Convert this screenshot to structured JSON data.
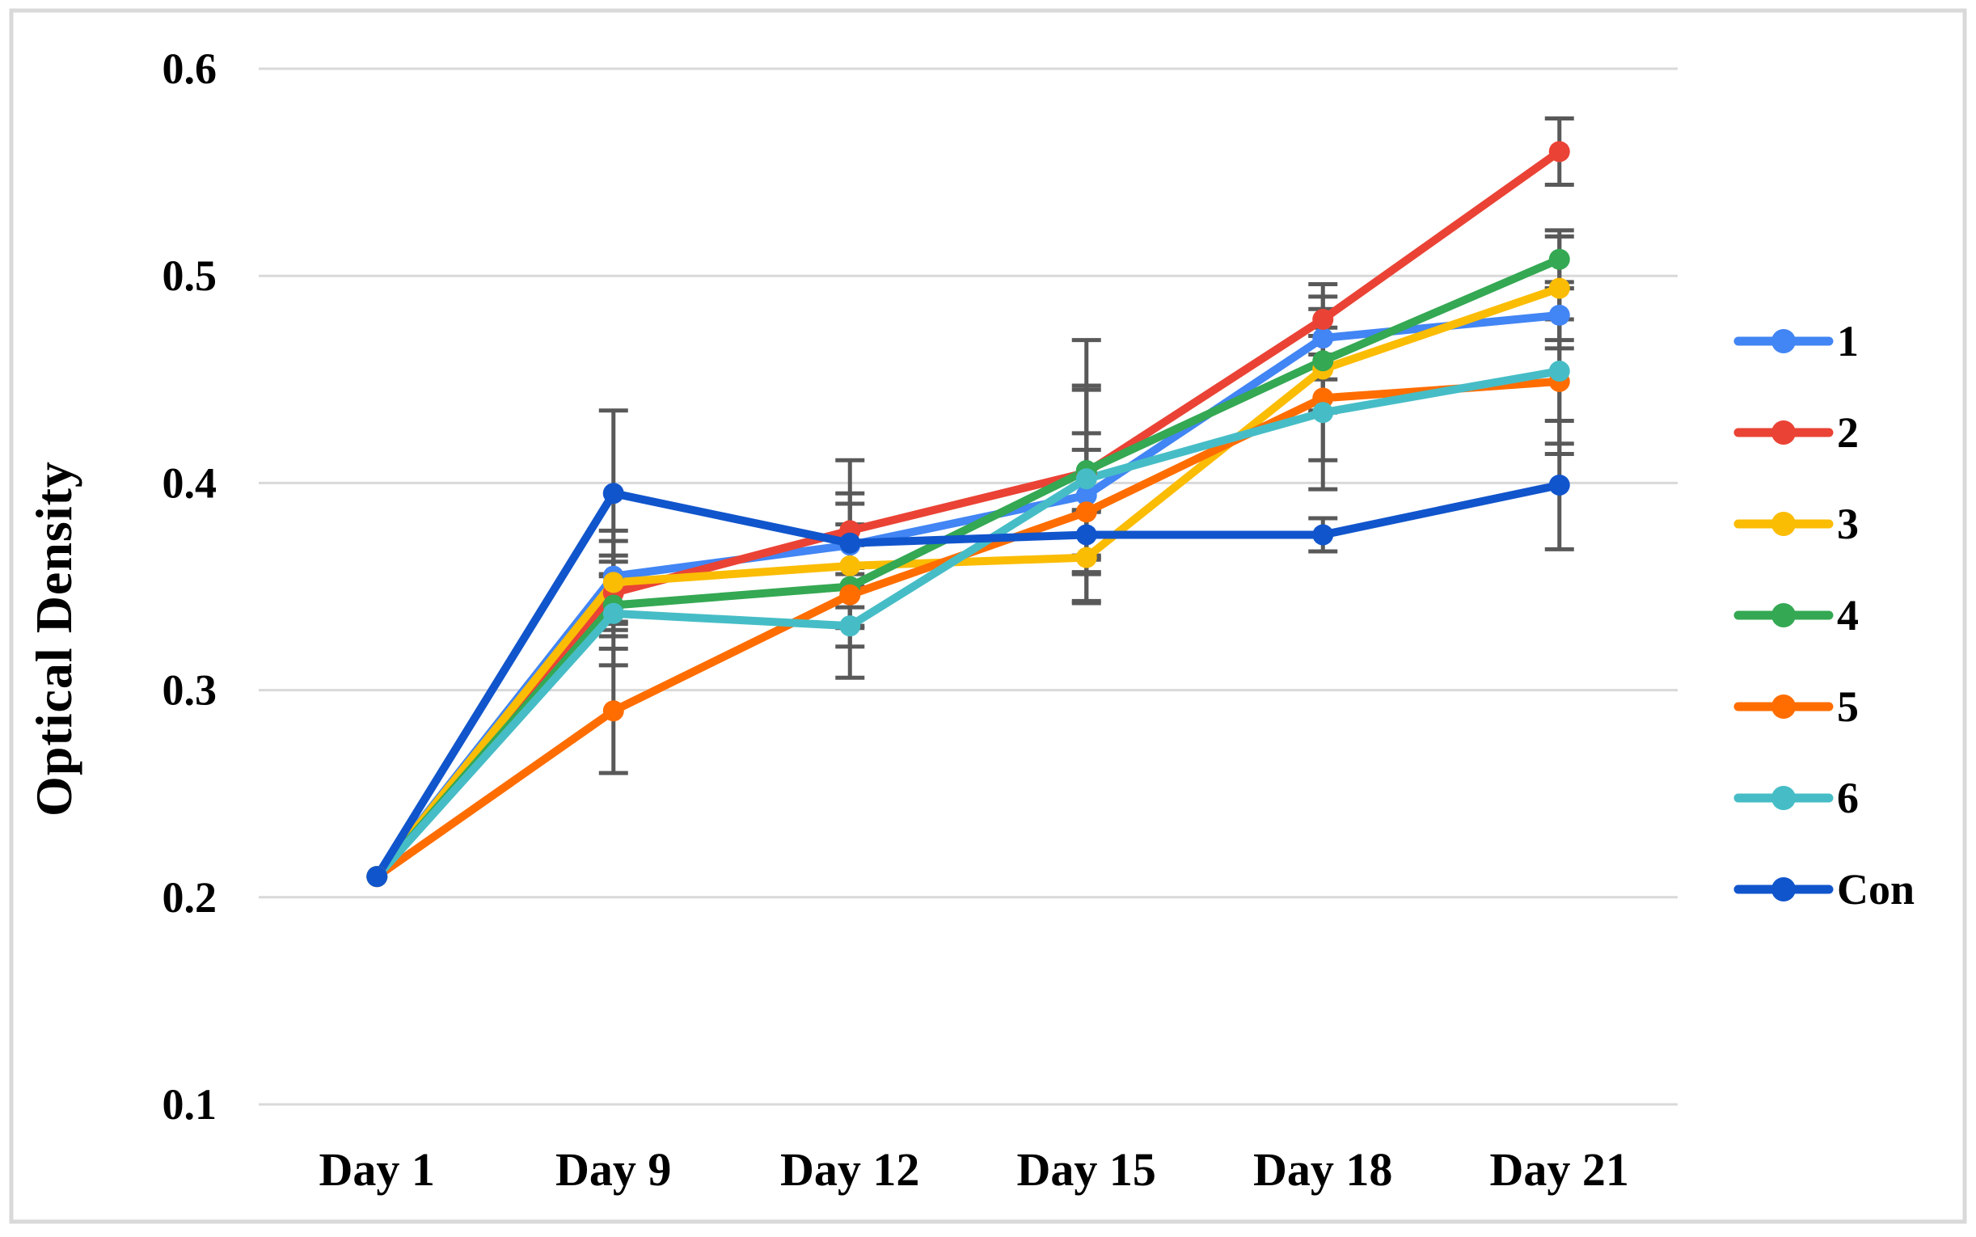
{
  "figure": {
    "border_color": "#d9d9d9",
    "background_color": "#ffffff"
  },
  "chart_data": {
    "type": "line",
    "title": "",
    "xlabel": "",
    "ylabel": "Optical Density",
    "categories": [
      "Day 1",
      "Day 9",
      "Day 12",
      "Day 15",
      "Day 18",
      "Day 21"
    ],
    "y_axis": {
      "min": 0.1,
      "max": 0.6,
      "step": 0.1,
      "tick_labels": [
        "0.1",
        "0.2",
        "0.3",
        "0.4",
        "0.5",
        "0.6"
      ]
    },
    "grid": true,
    "gridline_color": "#d9d9d9",
    "error_bar_color": "#595959",
    "legend_position": "right",
    "series": [
      {
        "name": "1",
        "color": "#4285F4",
        "values": [
          0.21,
          0.355,
          0.37,
          0.394,
          0.47,
          0.481
        ],
        "errors": [
          0,
          0.022,
          0.02,
          0.03,
          0.02,
          0.016
        ]
      },
      {
        "name": "2",
        "color": "#EA4335",
        "values": [
          0.21,
          0.347,
          0.377,
          0.405,
          0.479,
          0.56
        ],
        "errors": [
          0,
          0.018,
          0.018,
          0.04,
          0.017,
          0.016
        ]
      },
      {
        "name": "3",
        "color": "#FBBC04",
        "values": [
          0.21,
          0.352,
          0.36,
          0.364,
          0.455,
          0.494
        ],
        "errors": [
          0,
          0.02,
          0.02,
          0.022,
          0.02,
          0.025
        ]
      },
      {
        "name": "4",
        "color": "#34A853",
        "values": [
          0.21,
          0.341,
          0.35,
          0.406,
          0.459,
          0.508
        ],
        "errors": [
          0,
          0.015,
          0.02,
          0.063,
          0.025,
          0.014
        ]
      },
      {
        "name": "5",
        "color": "#FF6D01",
        "values": [
          0.21,
          0.29,
          0.346,
          0.386,
          0.441,
          0.449
        ],
        "errors": [
          0,
          0.03,
          0.025,
          0.03,
          0.03,
          0.03
        ]
      },
      {
        "name": "6",
        "color": "#46BDC6",
        "values": [
          0.21,
          0.337,
          0.331,
          0.402,
          0.434,
          0.454
        ],
        "errors": [
          0,
          0.025,
          0.025,
          0.045,
          0.037,
          0.04
        ]
      },
      {
        "name": "Con",
        "color": "#1155CC",
        "values": [
          0.21,
          0.395,
          0.371,
          0.375,
          0.375,
          0.399
        ],
        "errors": [
          0,
          0.04,
          0.04,
          0.012,
          0.008,
          0.031
        ]
      }
    ]
  }
}
